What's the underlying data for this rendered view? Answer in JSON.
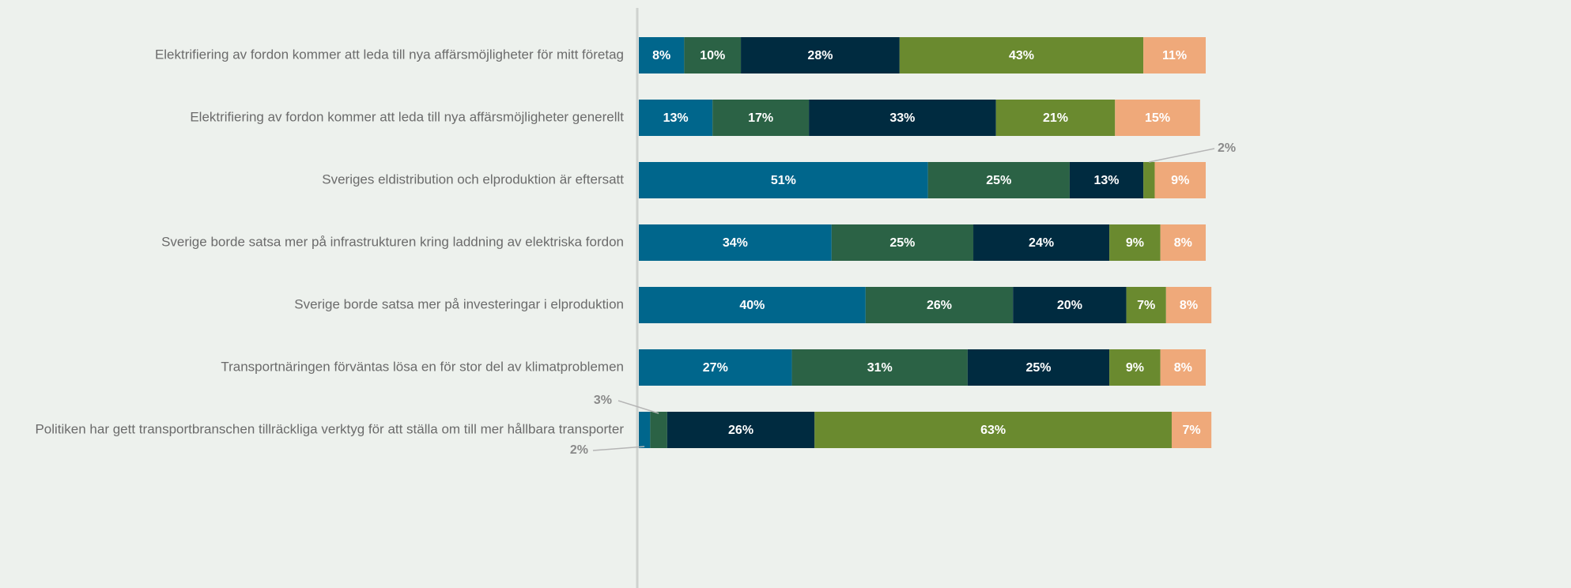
{
  "chart_data": {
    "type": "bar",
    "orientation": "horizontal",
    "stacked": true,
    "categories": [
      "Elektrifiering av fordon kommer att leda till nya affärsmöjligheter för mitt företag",
      "Elektrifiering av fordon kommer att leda till nya affärsmöjligheter generellt",
      "Sveriges eldistribution och elproduktion är eftersatt",
      "Sverige borde satsa mer på infrastrukturen kring laddning av elektriska fordon",
      "Sverige borde satsa mer på investeringar i elproduktion",
      "Transportnäringen förväntas lösa en för stor del av klimatproblemen",
      "Politiken har gett transportbranschen tillräckliga verktyg för att ställa om till mer hållbara transporter"
    ],
    "xlim": [
      0,
      100
    ],
    "series": [
      {
        "color": "#00668c",
        "values": [
          8,
          13,
          51,
          34,
          40,
          27,
          2
        ],
        "value_labels": [
          "8%",
          "13%",
          "51%",
          "34%",
          "40%",
          "27%",
          "2%"
        ]
      },
      {
        "color": "#2b6245",
        "values": [
          10,
          17,
          25,
          25,
          26,
          31,
          3
        ],
        "value_labels": [
          "10%",
          "17%",
          "25%",
          "25%",
          "26%",
          "31%",
          "3%"
        ]
      },
      {
        "color": "#002b40",
        "values": [
          28,
          33,
          13,
          24,
          20,
          25,
          26
        ],
        "value_labels": [
          "28%",
          "33%",
          "13%",
          "24%",
          "20%",
          "25%",
          "26%"
        ]
      },
      {
        "color": "#6a8a2f",
        "values": [
          43,
          21,
          2,
          9,
          7,
          9,
          63
        ],
        "value_labels": [
          "43%",
          "21%",
          "2%",
          "9%",
          "7%",
          "9%",
          "63%"
        ]
      },
      {
        "color": "#efa97a",
        "values": [
          11,
          15,
          9,
          8,
          8,
          8,
          7
        ],
        "value_labels": [
          "11%",
          "15%",
          "9%",
          "8%",
          "8%",
          "8%",
          "7%"
        ]
      }
    ]
  }
}
